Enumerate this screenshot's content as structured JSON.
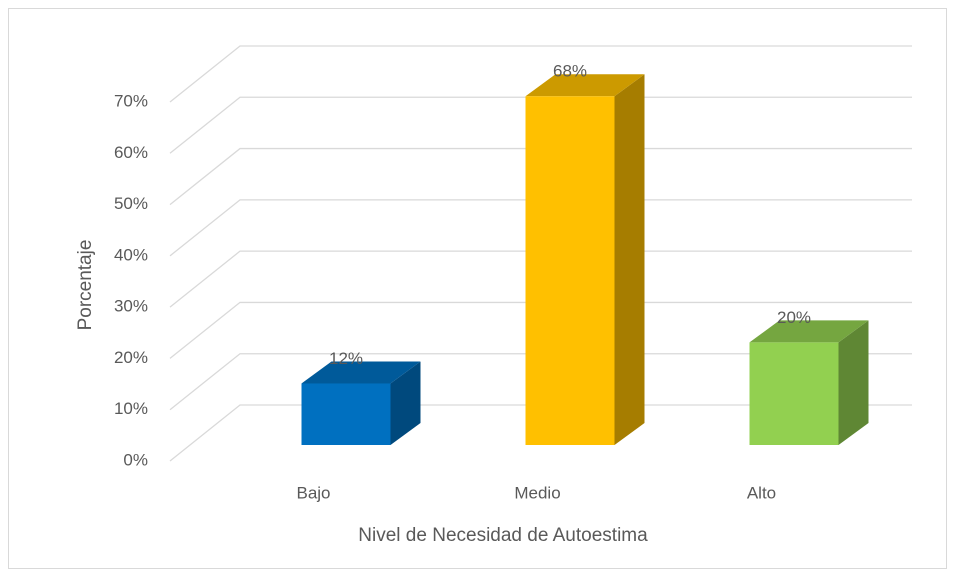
{
  "chart_data": {
    "type": "bar3d",
    "categories": [
      "Bajo",
      "Medio",
      "Alto"
    ],
    "values": [
      12,
      68,
      20
    ],
    "value_labels": [
      "12%",
      "68%",
      "20%"
    ],
    "colors": [
      "#0070c0",
      "#ffc000",
      "#92d050"
    ],
    "x_label": "Nivel de Necesidad de Autoestima",
    "y_label": "Porcentaje",
    "ylim": [
      0,
      70
    ],
    "yticks": [
      {
        "value": 0,
        "label": "0%"
      },
      {
        "value": 10,
        "label": "10%"
      },
      {
        "value": 20,
        "label": "20%"
      },
      {
        "value": 30,
        "label": "30%"
      },
      {
        "value": 40,
        "label": "40%"
      },
      {
        "value": 50,
        "label": "50%"
      },
      {
        "value": 60,
        "label": "60%"
      },
      {
        "value": 70,
        "label": "70%"
      }
    ],
    "grid": true
  }
}
